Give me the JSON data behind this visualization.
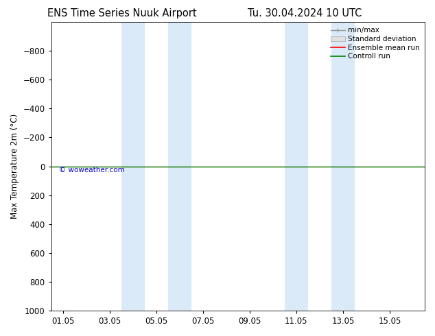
{
  "title_left": "ENS Time Series Nuuk Airport",
  "title_right": "Tu. 30.04.2024 10 UTC",
  "ylabel": "Max Temperature 2m (°C)",
  "ylim_top": -1000,
  "ylim_bottom": 1000,
  "yticks": [
    -800,
    -600,
    -400,
    -200,
    0,
    200,
    400,
    600,
    800,
    1000
  ],
  "xtick_labels": [
    "01.05",
    "03.05",
    "05.05",
    "07.05",
    "09.05",
    "11.05",
    "13.05",
    "15.05"
  ],
  "xtick_positions": [
    1,
    3,
    5,
    7,
    9,
    11,
    13,
    15
  ],
  "xlim": [
    0.5,
    16.5
  ],
  "shaded_bands": [
    {
      "start": 3.5,
      "end": 4.5
    },
    {
      "start": 5.5,
      "end": 6.5
    },
    {
      "start": 10.5,
      "end": 11.5
    },
    {
      "start": 12.5,
      "end": 13.5
    }
  ],
  "band_color": "#daeaf8",
  "line_y": 0,
  "ensemble_mean_color": "#ff0000",
  "control_run_color": "#008000",
  "watermark": "© woweather.com",
  "watermark_color": "#0000cc",
  "legend_items": [
    {
      "label": "min/max"
    },
    {
      "label": "Standard deviation"
    },
    {
      "label": "Ensemble mean run",
      "color": "#ff0000"
    },
    {
      "label": "Controll run",
      "color": "#008000"
    }
  ],
  "background_color": "#ffffff",
  "font_size": 8.5,
  "title_font_size": 10.5
}
